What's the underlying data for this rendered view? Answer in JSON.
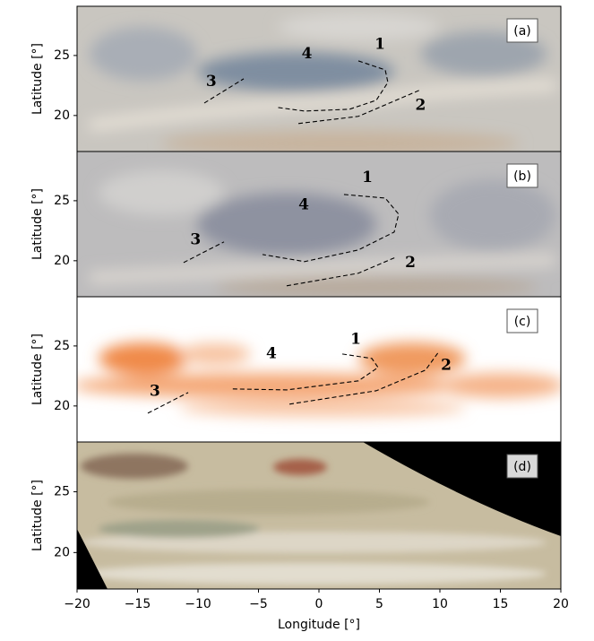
{
  "chart_data": [
    {
      "type": "image",
      "label": "(a)",
      "ylabel": "Latitude [°]",
      "xlim": [
        -20,
        20
      ],
      "ylim": [
        17,
        29.1
      ],
      "yticks": [
        20,
        25
      ],
      "annotations": [
        {
          "text": "1",
          "x": 5.04,
          "y": 25.9
        },
        {
          "text": "2",
          "x": 8.4,
          "y": 20.8
        },
        {
          "text": "3",
          "x": -8.9,
          "y": 22.8
        },
        {
          "text": "4",
          "x": -1.0,
          "y": 25.1
        }
      ],
      "curves": [
        {
          "x": [
            3.26,
            5.48,
            5.7,
            4.74,
            2.52,
            -1.19,
            -3.41
          ],
          "y": [
            24.55,
            23.8,
            22.76,
            21.27,
            20.52,
            20.37,
            20.67
          ]
        },
        {
          "x": [
            -1.7,
            3.26,
            8.44
          ],
          "y": [
            19.33,
            19.93,
            22.16
          ]
        },
        {
          "x": [
            -9.48,
            -6.22
          ],
          "y": [
            21.04,
            23.06
          ]
        }
      ]
    },
    {
      "type": "image",
      "label": "(b)",
      "ylabel": "Latitude [°]",
      "xlim": [
        -20,
        20
      ],
      "ylim": [
        17,
        29.1
      ],
      "yticks": [
        20,
        25
      ],
      "annotations": [
        {
          "text": "1",
          "x": 4.0,
          "y": 26.9
        },
        {
          "text": "2",
          "x": 7.56,
          "y": 19.8
        },
        {
          "text": "3",
          "x": -10.2,
          "y": 21.7
        },
        {
          "text": "4",
          "x": -1.26,
          "y": 24.6
        }
      ],
      "curves": [
        {
          "x": [
            2.07,
            5.48,
            6.59,
            6.22,
            3.26,
            -1.19,
            -4.67
          ],
          "y": [
            25.52,
            25.22,
            23.88,
            22.39,
            20.9,
            19.93,
            20.52
          ]
        },
        {
          "x": [
            -2.67,
            3.26,
            6.37
          ],
          "y": [
            17.91,
            18.96,
            20.3
          ]
        },
        {
          "x": [
            -11.19,
            -7.85
          ],
          "y": [
            19.85,
            21.57
          ]
        }
      ]
    },
    {
      "type": "image",
      "label": "(c)",
      "ylabel": "Latitude [°]",
      "xlim": [
        -20,
        20
      ],
      "ylim": [
        17,
        29.1
      ],
      "yticks": [
        20,
        25
      ],
      "annotations": [
        {
          "text": "1",
          "x": 3.04,
          "y": 25.5
        },
        {
          "text": "2",
          "x": 10.52,
          "y": 23.36
        },
        {
          "text": "3",
          "x": -13.56,
          "y": 21.2
        },
        {
          "text": "4",
          "x": -3.93,
          "y": 24.33
        }
      ],
      "curves": [
        {
          "x": [
            1.93,
            4.37,
            4.89,
            3.26,
            -2.67,
            -7.26
          ],
          "y": [
            24.33,
            23.96,
            23.21,
            22.09,
            21.34,
            21.42
          ]
        },
        {
          "x": [
            -2.44,
            4.74,
            8.81,
            9.93
          ],
          "y": [
            20.15,
            21.27,
            22.99,
            24.55
          ]
        },
        {
          "x": [
            -14.15,
            -10.81
          ],
          "y": [
            19.4,
            21.12
          ]
        }
      ]
    },
    {
      "type": "image",
      "label": "(d)",
      "ylabel": "Latitude [°]",
      "xlabel": "Longitude [°]",
      "xlim": [
        -20,
        20
      ],
      "ylim": [
        17,
        29.1
      ],
      "yticks": [
        20,
        25
      ],
      "xticks": [
        {
          "value": -20,
          "label": "−20"
        },
        {
          "value": -15,
          "label": "−15"
        },
        {
          "value": -10,
          "label": "−10"
        },
        {
          "value": -5,
          "label": "−5"
        },
        0,
        5,
        10,
        15,
        20
      ]
    }
  ]
}
